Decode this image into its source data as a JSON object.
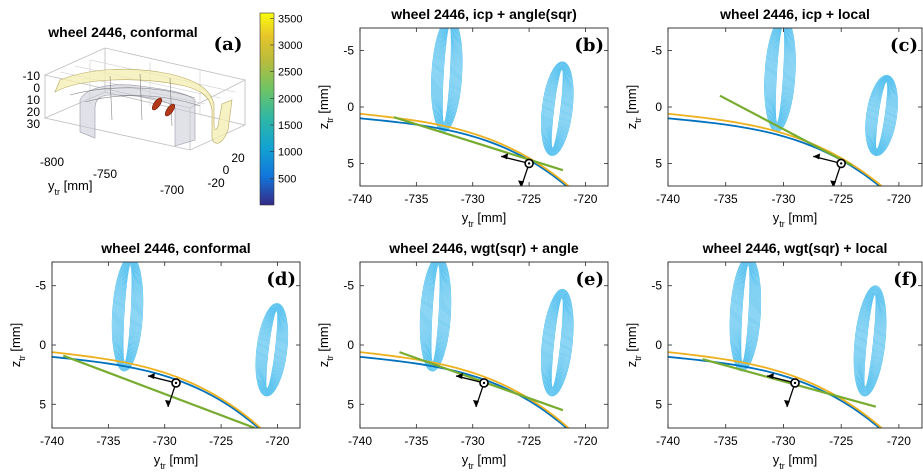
{
  "figure": {
    "panels": [
      {
        "id": "b",
        "label": "(b)",
        "title": "wheel 2446, icp + angle(sqr)"
      },
      {
        "id": "c",
        "label": "(c)",
        "title": "wheel 2446, icp + local"
      },
      {
        "id": "d",
        "label": "(d)",
        "title": "wheel 2446, conformal"
      },
      {
        "id": "e",
        "label": "(e)",
        "title": "wheel 2446, wgt(sqr) + angle"
      },
      {
        "id": "f",
        "label": "(f)",
        "title": "wheel 2446, wgt(sqr) + local"
      }
    ],
    "axes": {
      "xlabel_main": "y",
      "xlabel_sub": "tr",
      "xlabel_unit": " [mm]",
      "ylabel_main": "z",
      "ylabel_sub": "tr",
      "ylabel_unit": " [mm]",
      "xticks": [
        -740,
        -735,
        -730,
        -725,
        -720
      ],
      "yticks": [
        -5,
        0,
        5
      ]
    },
    "panel_a": {
      "label": "(a)",
      "title": "wheel 2446, conformal",
      "xticks": [
        "-800",
        "-750",
        "-700"
      ],
      "zticks": [
        "-10",
        "0",
        "10",
        "20",
        "30"
      ],
      "depth_ticks": [
        "20",
        "0",
        "-20"
      ],
      "xlabel_main": "y",
      "xlabel_sub": "tr",
      "xlabel_unit": " [mm]"
    },
    "colorbar": {
      "ticks": [
        3500,
        3000,
        2500,
        2000,
        1500,
        1000,
        500
      ],
      "range": [
        0,
        3600
      ]
    },
    "colors": {
      "rail": "#0072BD",
      "wheel": "#EDB120",
      "contact": "#77AC30",
      "pressure": "#4DBEEE",
      "cb_top": "#F9FB0E",
      "cb_bottom": "#352A87"
    }
  },
  "chart_data": [
    {
      "panel": "b",
      "type": "line",
      "title": "wheel 2446, icp + angle(sqr)",
      "xlim": [
        -740,
        -718
      ],
      "ylim": [
        7,
        -7
      ],
      "contact_points": [
        [
          -725,
          5
        ]
      ],
      "pressure_peaks": [
        [
          -732,
          -8
        ],
        [
          -722,
          -4
        ]
      ],
      "contact_line": [
        [
          -737,
          0.9
        ],
        [
          -722,
          5.6
        ]
      ]
    },
    {
      "panel": "c",
      "type": "line",
      "title": "wheel 2446, icp + local",
      "xlim": [
        -740,
        -718
      ],
      "ylim": [
        7,
        -7
      ],
      "contact_points": [
        [
          -725,
          5
        ]
      ],
      "pressure_peaks": [
        [
          -730,
          -8
        ],
        [
          -721,
          -2.8
        ]
      ],
      "contact_line": [
        [
          -735.5,
          -1
        ],
        [
          -724,
          5.2
        ]
      ]
    },
    {
      "panel": "d",
      "type": "line",
      "title": "wheel 2446, conformal",
      "xlim": [
        -740,
        -718
      ],
      "ylim": [
        7,
        -7
      ],
      "contact_points": [
        [
          -729,
          3.2
        ]
      ],
      "pressure_peaks": [
        [
          -733,
          -7.5
        ],
        [
          -720,
          -3.5
        ]
      ],
      "contact_line": [
        [
          -739,
          0.9
        ],
        [
          -722,
          7
        ]
      ]
    },
    {
      "panel": "e",
      "type": "line",
      "title": "wheel 2446, wgt(sqr) + angle",
      "xlim": [
        -740,
        -718
      ],
      "ylim": [
        7,
        -7
      ],
      "contact_points": [
        [
          -729,
          3.2
        ]
      ],
      "pressure_peaks": [
        [
          -733,
          -7.5
        ],
        [
          -722,
          -4.7
        ]
      ],
      "contact_line": [
        [
          -736.5,
          0.6
        ],
        [
          -722,
          5.5
        ]
      ]
    },
    {
      "panel": "f",
      "type": "line",
      "title": "wheel 2446, wgt(sqr) + local",
      "xlim": [
        -740,
        -718
      ],
      "ylim": [
        7,
        -7
      ],
      "contact_points": [
        [
          -729,
          3.2
        ]
      ],
      "pressure_peaks": [
        [
          -733,
          -7.5
        ],
        [
          -722,
          -5
        ]
      ],
      "contact_line": [
        [
          -737,
          1.2
        ],
        [
          -722,
          5.2
        ]
      ]
    }
  ]
}
